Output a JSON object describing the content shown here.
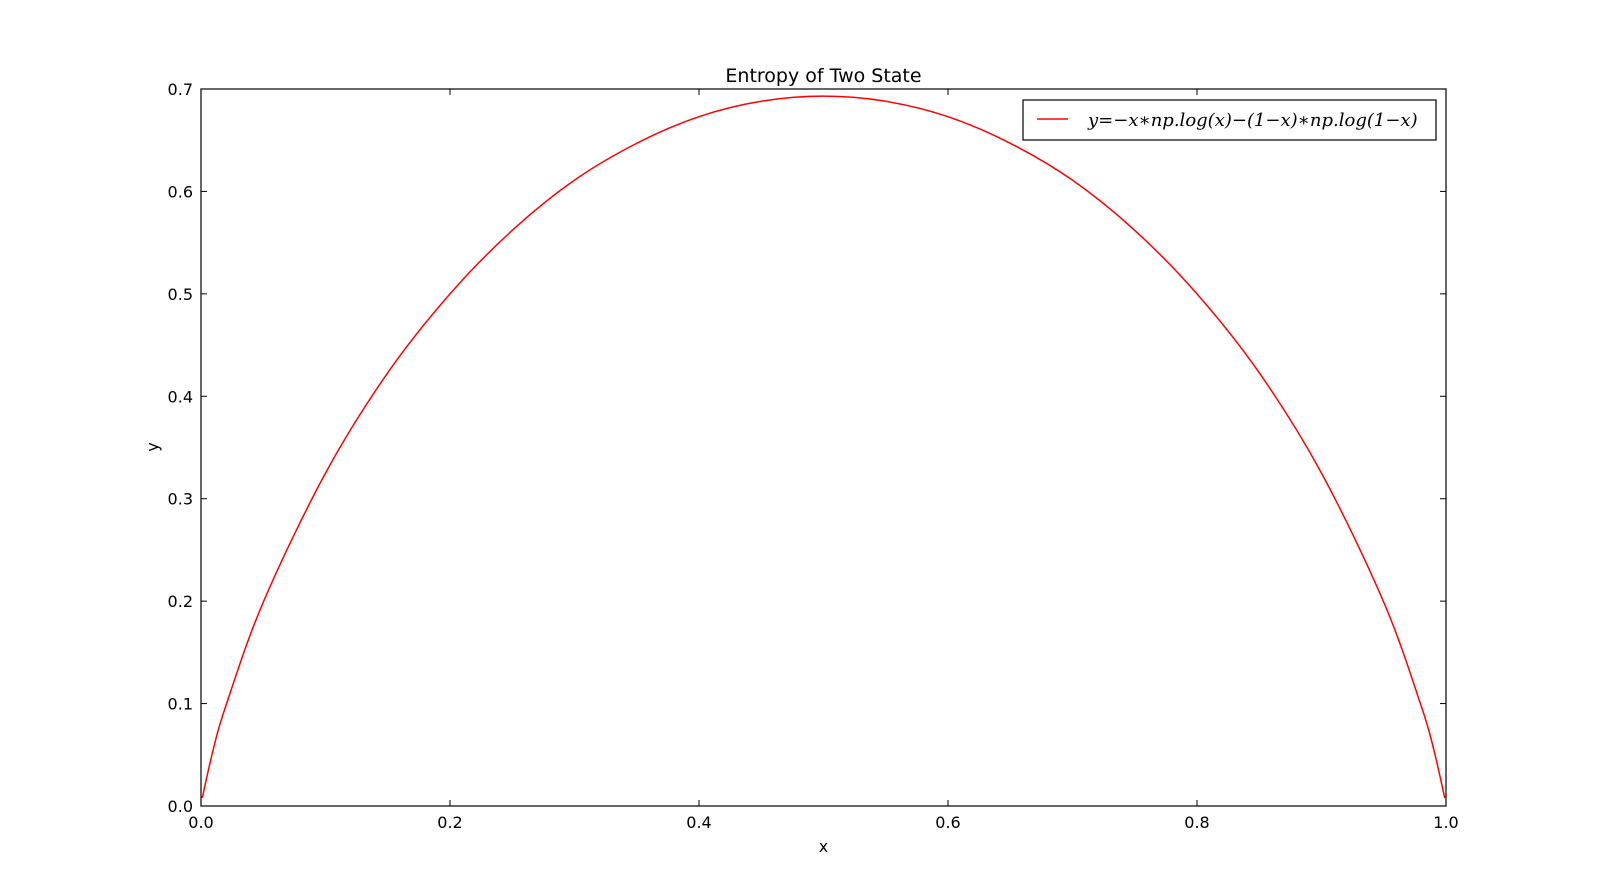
{
  "chart_data": {
    "type": "line",
    "title": "Entropy of Two State",
    "xlabel": "x",
    "ylabel": "y",
    "xlim": [
      0.0,
      1.0
    ],
    "ylim": [
      0.0,
      0.7
    ],
    "xticks": [
      0.0,
      0.2,
      0.4,
      0.6,
      0.8,
      1.0
    ],
    "xtick_labels": [
      "0.0",
      "0.2",
      "0.4",
      "0.6",
      "0.8",
      "1.0"
    ],
    "yticks": [
      0.0,
      0.1,
      0.2,
      0.3,
      0.4,
      0.5,
      0.6,
      0.7
    ],
    "ytick_labels": [
      "0.0",
      "0.1",
      "0.2",
      "0.3",
      "0.4",
      "0.5",
      "0.6",
      "0.7"
    ],
    "grid": false,
    "legend_position": "top-right",
    "series": [
      {
        "name": "y=−x∗np.log(x)−(1−x)∗np.log(1−x)",
        "color": "#ff0000",
        "x": [
          0.001,
          0.01,
          0.02,
          0.05,
          0.1,
          0.15,
          0.2,
          0.25,
          0.3,
          0.35,
          0.4,
          0.45,
          0.5,
          0.55,
          0.6,
          0.65,
          0.7,
          0.75,
          0.8,
          0.85,
          0.9,
          0.95,
          0.98,
          0.99,
          0.999
        ],
        "y": [
          0.0079,
          0.056,
          0.098,
          0.199,
          0.325,
          0.423,
          0.5,
          0.562,
          0.611,
          0.647,
          0.673,
          0.688,
          0.693,
          0.688,
          0.673,
          0.647,
          0.611,
          0.562,
          0.5,
          0.423,
          0.325,
          0.199,
          0.098,
          0.056,
          0.0079
        ]
      }
    ]
  }
}
